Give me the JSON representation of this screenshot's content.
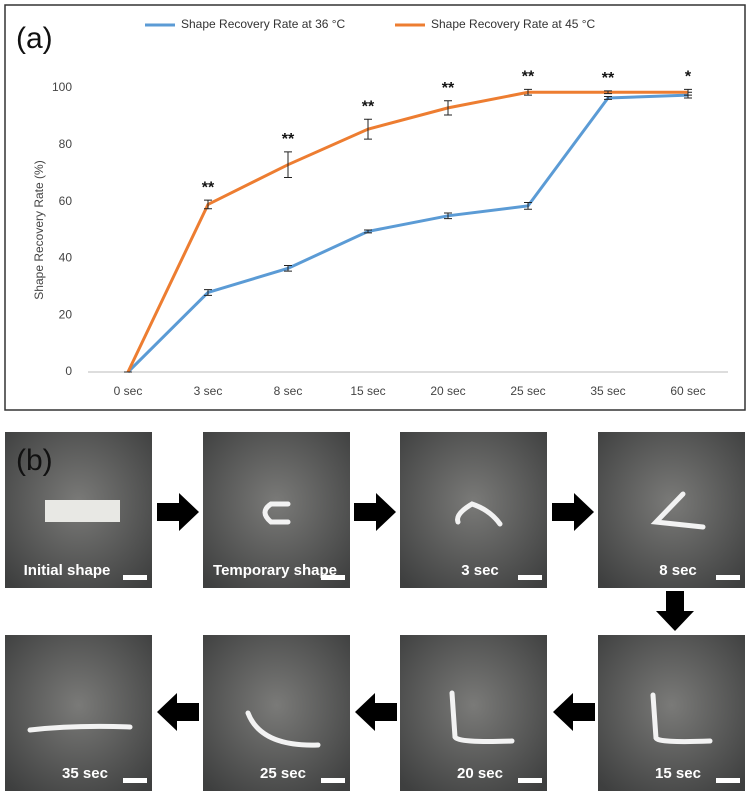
{
  "chart_data": {
    "type": "line",
    "panel_label": "(a)",
    "y_label": "Shape Recovery Rate (%)",
    "categories": [
      "0 sec",
      "3 sec",
      "8 sec",
      "15 sec",
      "20 sec",
      "25 sec",
      "35 sec",
      "60 sec"
    ],
    "series": [
      {
        "name": "Shape Recovery Rate at 36 °C",
        "color": "#5b9bd5",
        "values": [
          0,
          28,
          36.5,
          49.5,
          55,
          58.5,
          96.5,
          97.5
        ],
        "errors": [
          0,
          1,
          1,
          0.5,
          1,
          1.2,
          0.5,
          1
        ]
      },
      {
        "name": "Shape Recovery Rate at 45 °C",
        "color": "#ed7d31",
        "values": [
          0,
          59,
          73,
          85.5,
          93,
          98.5,
          98.5,
          98.5
        ],
        "errors": [
          0,
          1.5,
          4.5,
          3.5,
          2.5,
          1,
          0.5,
          1
        ]
      }
    ],
    "significance": [
      null,
      "**",
      "**",
      "**",
      "**",
      "**",
      "**",
      "*"
    ],
    "ylim": [
      0,
      100
    ],
    "yticks": [
      0,
      20,
      40,
      60,
      80,
      100
    ],
    "grid": false,
    "legend": "top"
  },
  "panel_b": {
    "label": "(b)",
    "frames": [
      "Initial shape",
      "Temporary shape",
      "3 sec",
      "8 sec",
      "15 sec",
      "20 sec",
      "25 sec",
      "35 sec"
    ]
  }
}
